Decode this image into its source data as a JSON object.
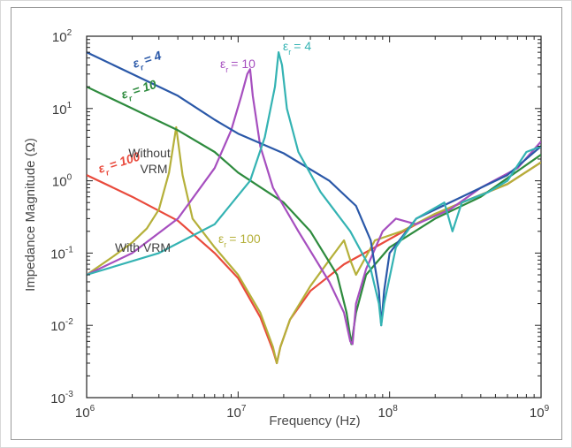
{
  "chart_data": {
    "type": "line",
    "xlabel": "Frequency (Hz)",
    "ylabel": "Impedance Magnitude (Ω)",
    "xscale": "log",
    "yscale": "log",
    "xlim": [
      1000000,
      1000000000
    ],
    "ylim": [
      0.001,
      100
    ],
    "x_ticks": [
      {
        "base": "10",
        "exp": "6"
      },
      {
        "base": "10",
        "exp": "7"
      },
      {
        "base": "10",
        "exp": "8"
      },
      {
        "base": "10",
        "exp": "9"
      }
    ],
    "y_ticks": [
      {
        "base": "10",
        "exp": "2"
      },
      {
        "base": "10",
        "exp": "1"
      },
      {
        "base": "10",
        "exp": "0"
      },
      {
        "base": "10",
        "exp": "-1"
      },
      {
        "base": "10",
        "exp": "-2"
      },
      {
        "base": "10",
        "exp": "-3"
      }
    ],
    "grid": false,
    "series": [
      {
        "color": "#e94a3c",
        "x": [
          1000000,
          2000000,
          4000000,
          7000000,
          10000000,
          14000000,
          17000000,
          18000000,
          19000000,
          22000000,
          30000000,
          50000000,
          80000000,
          150000000,
          300000000,
          600000000,
          1000000000
        ],
        "y": [
          1.2,
          0.6,
          0.28,
          0.1,
          0.045,
          0.013,
          0.0045,
          0.003,
          0.005,
          0.012,
          0.03,
          0.07,
          0.12,
          0.25,
          0.5,
          0.9,
          1.8
        ]
      },
      {
        "color": "#b5b03a",
        "x": [
          1000000,
          1500000,
          2000000,
          2500000,
          3000000,
          3500000,
          3900000,
          4300000,
          5000000,
          7000000,
          10000000,
          14000000,
          17000000,
          18000000,
          19000000,
          22000000,
          30000000,
          40000000,
          50000000,
          55000000,
          60000000,
          80000000,
          120000000,
          200000000,
          300000000,
          600000000,
          1000000000
        ],
        "y": [
          0.05,
          0.09,
          0.14,
          0.22,
          0.4,
          1.3,
          5.5,
          1.2,
          0.3,
          0.12,
          0.05,
          0.015,
          0.005,
          0.003,
          0.005,
          0.012,
          0.035,
          0.08,
          0.15,
          0.08,
          0.05,
          0.15,
          0.2,
          0.35,
          0.5,
          0.9,
          1.8
        ]
      },
      {
        "color": "#2e8b3e",
        "x": [
          1000000,
          2000000,
          4000000,
          7000000,
          10000000,
          20000000,
          30000000,
          45000000,
          52000000,
          56000000,
          60000000,
          70000000,
          100000000,
          200000000,
          400000000,
          1000000000
        ],
        "y": [
          20,
          10,
          5,
          2.5,
          1.3,
          0.5,
          0.2,
          0.05,
          0.015,
          0.0055,
          0.015,
          0.05,
          0.12,
          0.3,
          0.6,
          2.3
        ]
      },
      {
        "color": "#a64fbf",
        "x": [
          1000000,
          2000000,
          4000000,
          7000000,
          9000000,
          10500000,
          11500000,
          12000000,
          12500000,
          14000000,
          17000000,
          25000000,
          40000000,
          50000000,
          55000000,
          57000000,
          60000000,
          70000000,
          90000000,
          110000000,
          150000000,
          250000000,
          400000000,
          700000000,
          1000000000
        ],
        "y": [
          0.05,
          0.1,
          0.3,
          1.5,
          5,
          15,
          30,
          35,
          15,
          3,
          0.8,
          0.2,
          0.04,
          0.015,
          0.006,
          0.0055,
          0.02,
          0.06,
          0.2,
          0.3,
          0.25,
          0.4,
          0.8,
          1.5,
          3.5
        ]
      },
      {
        "color": "#2a58a8",
        "x": [
          1000000,
          2000000,
          4000000,
          7000000,
          10000000,
          20000000,
          40000000,
          60000000,
          75000000,
          85000000,
          88000000,
          92000000,
          100000000,
          150000000,
          300000000,
          600000000,
          1000000000
        ],
        "y": [
          60,
          30,
          15,
          7,
          4.5,
          2.4,
          1,
          0.45,
          0.15,
          0.03,
          0.01,
          0.03,
          0.1,
          0.3,
          0.6,
          1.2,
          3
        ]
      },
      {
        "color": "#34b3b3",
        "x": [
          1000000,
          3000000,
          7000000,
          12000000,
          15000000,
          17500000,
          18500000,
          19500000,
          21000000,
          25000000,
          35000000,
          55000000,
          75000000,
          85000000,
          88000000,
          92000000,
          110000000,
          150000000,
          230000000,
          260000000,
          300000000,
          450000000,
          600000000,
          800000000,
          1000000000
        ],
        "y": [
          0.05,
          0.1,
          0.25,
          1,
          4,
          20,
          60,
          40,
          10,
          2.5,
          0.7,
          0.2,
          0.06,
          0.02,
          0.01,
          0.02,
          0.12,
          0.3,
          0.5,
          0.2,
          0.5,
          0.7,
          1,
          2.5,
          3
        ]
      }
    ],
    "annotations": [
      {
        "text": "= 4",
        "color": "#2a58a8"
      },
      {
        "text": "= 10",
        "color": "#2e8b3e"
      },
      {
        "text": "= 100",
        "color": "#e94a3c"
      },
      {
        "text": "= 10",
        "color": "#a64fbf"
      },
      {
        "text": "= 4",
        "color": "#34b3b3"
      },
      {
        "text": "= 100",
        "color": "#b5b03a"
      },
      {
        "text": "Without",
        "color": "#3f3f3f"
      },
      {
        "text": "VRM",
        "color": "#3f3f3f"
      },
      {
        "text": "With VRM",
        "color": "#3f3f3f"
      }
    ],
    "epsilon_symbol": "ε",
    "subscript": "r"
  }
}
